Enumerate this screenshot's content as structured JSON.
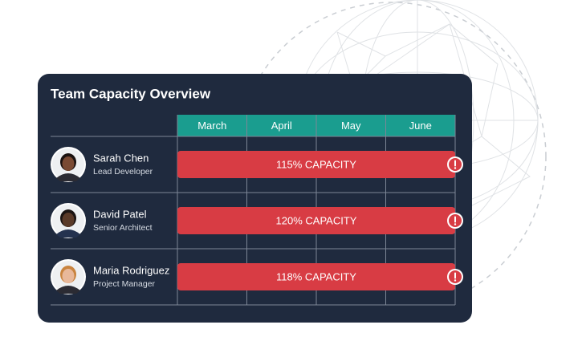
{
  "header": {
    "title": "Team Capacity Overview"
  },
  "months": [
    "March",
    "April",
    "May",
    "June"
  ],
  "members": [
    {
      "name": "Sarah Chen",
      "role": "Lead Developer",
      "capacity": "115% CAPACITY"
    },
    {
      "name": "David Patel",
      "role": "Senior Architect",
      "capacity": "120% CAPACITY"
    },
    {
      "name": "Maria Rodriguez",
      "role": "Project Manager",
      "capacity": "118% CAPACITY"
    }
  ]
}
